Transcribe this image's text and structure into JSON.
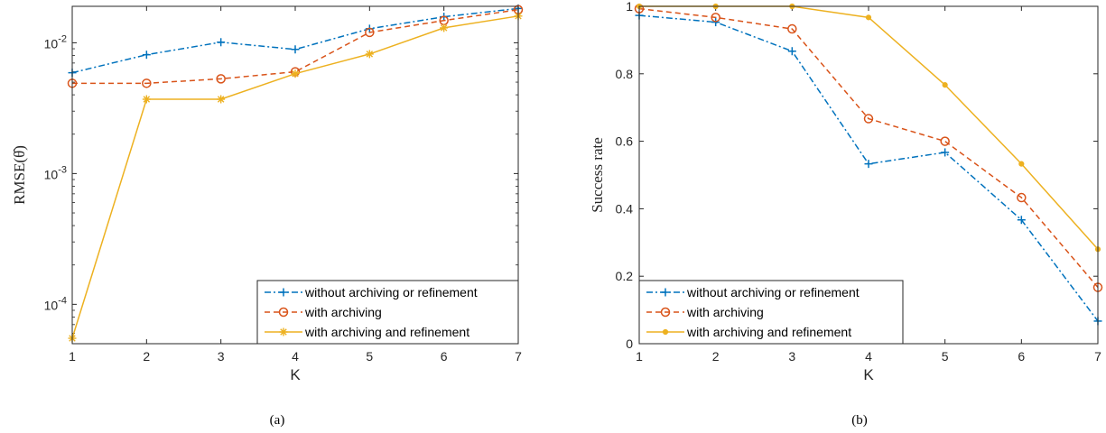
{
  "colors": {
    "blue": "#0072BD",
    "orange": "#D95319",
    "yellow": "#EDB120",
    "axis": "#262626"
  },
  "chart_data": [
    {
      "type": "line",
      "caption": "(a)",
      "xlabel": "K",
      "ylabel": "RMSE(θ̂)",
      "yscale": "log",
      "xlim": [
        1,
        7
      ],
      "ylim": [
        5e-05,
        0.019
      ],
      "x_ticks": [
        1,
        2,
        3,
        4,
        5,
        6,
        7
      ],
      "x_tick_labels": [
        "1",
        "2",
        "3",
        "4",
        "5",
        "6",
        "7"
      ],
      "y_ticks": [
        0.0001,
        0.001,
        0.01
      ],
      "y_tick_labels": [
        {
          "base": "10",
          "exp": "-4"
        },
        {
          "base": "10",
          "exp": "-3"
        },
        {
          "base": "10",
          "exp": "-2"
        }
      ],
      "legend_position": "bottom-right",
      "x": [
        1,
        2,
        3,
        4,
        5,
        6,
        7
      ],
      "series": [
        {
          "name": "without archiving or refinement",
          "color": "#0072BD",
          "marker": "plus",
          "line": "dashdot",
          "values": [
            0.0059,
            0.0081,
            0.0101,
            0.0089,
            0.0128,
            0.0158,
            0.0183
          ]
        },
        {
          "name": "with archiving",
          "color": "#D95319",
          "marker": "circle",
          "line": "dashed",
          "values": [
            0.0049,
            0.0049,
            0.0053,
            0.006,
            0.012,
            0.0148,
            0.0179
          ]
        },
        {
          "name": "with archiving and refinement",
          "color": "#EDB120",
          "marker": "asterisk",
          "line": "solid",
          "values": [
            5.5e-05,
            0.0037,
            0.0037,
            0.0058,
            0.0082,
            0.013,
            0.016
          ]
        }
      ]
    },
    {
      "type": "line",
      "caption": "(b)",
      "xlabel": "K",
      "ylabel": "Success rate",
      "yscale": "linear",
      "xlim": [
        1,
        7
      ],
      "ylim": [
        0,
        1
      ],
      "x_ticks": [
        1,
        2,
        3,
        4,
        5,
        6,
        7
      ],
      "x_tick_labels": [
        "1",
        "2",
        "3",
        "4",
        "5",
        "6",
        "7"
      ],
      "y_ticks": [
        0,
        0.2,
        0.4,
        0.6,
        0.8,
        1
      ],
      "y_tick_labels": [
        "0",
        "0.2",
        "0.4",
        "0.6",
        "0.8",
        "1"
      ],
      "legend_position": "bottom-left",
      "x": [
        1,
        2,
        3,
        4,
        5,
        6,
        7
      ],
      "series": [
        {
          "name": "without archiving or refinement",
          "color": "#0072BD",
          "marker": "plus",
          "line": "dashdot",
          "values": [
            0.973,
            0.953,
            0.867,
            0.533,
            0.567,
            0.367,
            0.067
          ]
        },
        {
          "name": "with archiving",
          "color": "#D95319",
          "marker": "circle",
          "line": "dashed",
          "values": [
            0.993,
            0.967,
            0.933,
            0.667,
            0.6,
            0.433,
            0.167
          ]
        },
        {
          "name": "with archiving and refinement",
          "color": "#EDB120",
          "marker": "dot",
          "line": "solid",
          "values": [
            1.0,
            1.0,
            1.0,
            0.967,
            0.767,
            0.533,
            0.28
          ]
        }
      ]
    }
  ]
}
